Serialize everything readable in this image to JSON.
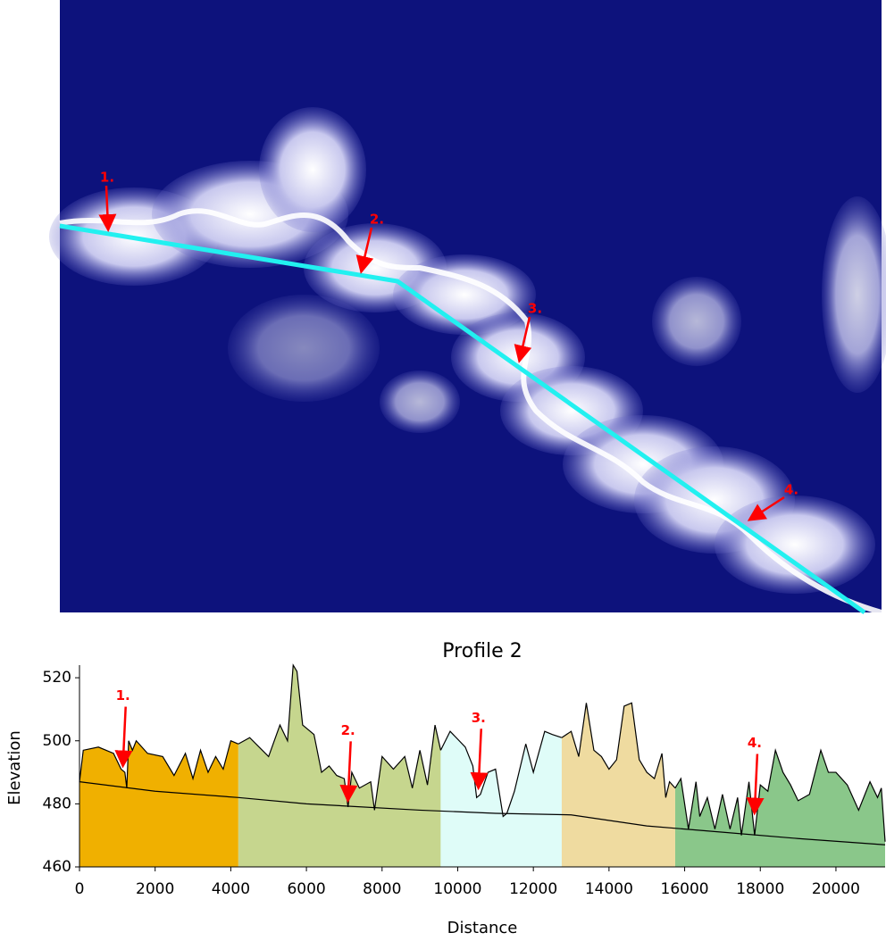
{
  "map": {
    "labels": [
      "1.",
      "2.",
      "3.",
      "4."
    ]
  },
  "chart_data": {
    "type": "area",
    "title": "Profile 2",
    "x_label": "Distance",
    "y_label": "Elevation",
    "xlim": [
      0,
      21300
    ],
    "ylim": [
      460,
      524
    ],
    "xticks": [
      0,
      2000,
      4000,
      6000,
      8000,
      10000,
      12000,
      14000,
      16000,
      18000,
      20000
    ],
    "yticks": [
      460,
      480,
      500,
      520
    ],
    "series": [
      {
        "type": "area",
        "color": "#f0b000",
        "x": [
          0,
          100,
          500,
          900,
          1100,
          1200,
          1250,
          1300,
          1400,
          1500,
          1800,
          2200,
          2500,
          2800,
          3000,
          3200,
          3400,
          3600,
          3800,
          4000,
          4200
        ],
        "values": [
          487,
          497,
          498,
          496,
          491,
          490,
          485,
          500,
          497,
          500,
          496,
          495,
          489,
          496,
          488,
          497,
          490,
          495,
          491,
          500,
          499
        ]
      },
      {
        "type": "area",
        "color": "#c6d68e",
        "x": [
          4200,
          4500,
          5000,
          5300,
          5500,
          5650,
          5750,
          5900,
          6200,
          6400,
          6600,
          6800,
          7000,
          7100,
          7200,
          7400,
          7700,
          7800,
          8000,
          8300,
          8600,
          8800,
          9000,
          9200,
          9400,
          9550
        ],
        "values": [
          499,
          501,
          495,
          505,
          500,
          524,
          522,
          505,
          502,
          490,
          492,
          489,
          488,
          479,
          490,
          485,
          487,
          478,
          495,
          491,
          495,
          485,
          497,
          486,
          505,
          497
        ]
      },
      {
        "type": "area",
        "color": "#dffcf8",
        "x": [
          9550,
          9800,
          10200,
          10400,
          10500,
          10600,
          10800,
          11000,
          11200,
          11300,
          11500,
          11800,
          12000,
          12300,
          12500,
          12750
        ],
        "values": [
          497,
          503,
          498,
          492,
          482,
          483,
          490,
          491,
          476,
          477,
          484,
          499,
          490,
          503,
          502,
          501
        ]
      },
      {
        "type": "area",
        "color": "#efdba0",
        "x": [
          12750,
          13000,
          13200,
          13400,
          13600,
          13800,
          14000,
          14200,
          14400,
          14600,
          14800,
          15000,
          15200,
          15400,
          15500,
          15600,
          15750
        ],
        "values": [
          501,
          503,
          495,
          512,
          497,
          495,
          491,
          494,
          511,
          512,
          494,
          490,
          488,
          496,
          482,
          487,
          485
        ]
      },
      {
        "type": "area",
        "color": "#8ac78a",
        "x": [
          15750,
          15900,
          16100,
          16300,
          16400,
          16600,
          16800,
          17000,
          17200,
          17400,
          17500,
          17700,
          17850,
          18000,
          18200,
          18400,
          18600,
          18800,
          19000,
          19300,
          19600,
          19800,
          20000,
          20300,
          20600,
          20900,
          21100,
          21200,
          21300
        ],
        "values": [
          485,
          488,
          472,
          487,
          476,
          482,
          472,
          483,
          472,
          482,
          470,
          487,
          470,
          486,
          484,
          497,
          490,
          486,
          481,
          483,
          497,
          490,
          490,
          486,
          478,
          487,
          482,
          485,
          468
        ]
      },
      {
        "type": "line",
        "color": "#000000",
        "x": [
          0,
          2000,
          4200,
          6000,
          9000,
          11000,
          13000,
          15000,
          17000,
          19000,
          21300
        ],
        "values": [
          487,
          484,
          482,
          480,
          478,
          477,
          476.5,
          473,
          471,
          469,
          467
        ]
      }
    ],
    "annotations": [
      {
        "text": "1.",
        "x": 1150,
        "y": 491,
        "color": "#ff0000"
      },
      {
        "text": "2.",
        "x": 7100,
        "y": 480,
        "color": "#ff0000"
      },
      {
        "text": "3.",
        "x": 10550,
        "y": 484,
        "color": "#ff0000"
      },
      {
        "text": "4.",
        "x": 17850,
        "y": 476,
        "color": "#ff0000"
      }
    ]
  }
}
